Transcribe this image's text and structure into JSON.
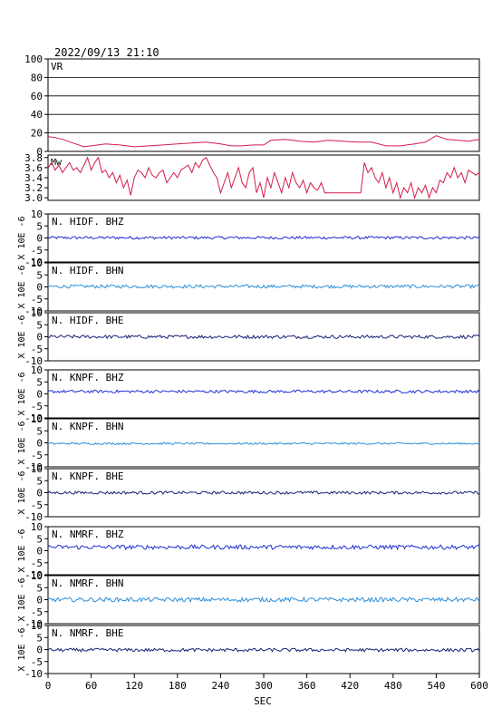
{
  "page": {
    "title": "2022/09/13 21:10",
    "xlabel": "SEC"
  },
  "chart_data": {
    "type": "line",
    "x_ticks": [
      0,
      60,
      120,
      180,
      240,
      300,
      360,
      420,
      480,
      540,
      600
    ],
    "xlim": [
      0,
      600
    ],
    "colors": {
      "frame": "#000000",
      "vr": "#d21e4a",
      "mw": "#d21e4a",
      "bhz": "#1f2fd1",
      "bhn": "#2b8fd9",
      "bhe": "#1a1f78",
      "grid": "#000000"
    },
    "vr": {
      "label": "VR",
      "yticks": [
        "100",
        "80",
        "60",
        "40",
        "20",
        "0"
      ],
      "ylim": [
        0,
        100
      ],
      "grid": true,
      "x": [
        0,
        10,
        20,
        35,
        50,
        60,
        80,
        100,
        120,
        140,
        160,
        180,
        200,
        220,
        240,
        255,
        270,
        285,
        300,
        310,
        330,
        350,
        370,
        390,
        410,
        430,
        450,
        470,
        490,
        510,
        525,
        540,
        555,
        570,
        585,
        600
      ],
      "y": [
        16,
        15,
        13,
        9,
        5,
        6,
        8,
        7,
        5,
        6,
        7,
        8,
        9,
        10,
        8,
        6,
        6,
        7,
        7,
        12,
        13,
        11,
        10,
        12,
        11,
        10,
        10,
        6,
        6,
        8,
        10,
        17,
        13,
        12,
        11,
        13
      ]
    },
    "mw": {
      "label": "Mw",
      "yticks": [
        "3.8",
        "3.6",
        "3.4",
        "3.2",
        "3.0"
      ],
      "ylim": [
        2.95,
        3.85
      ],
      "x": [
        0,
        5,
        10,
        15,
        20,
        25,
        30,
        35,
        40,
        45,
        50,
        55,
        60,
        65,
        70,
        75,
        80,
        85,
        90,
        95,
        100,
        105,
        110,
        115,
        120,
        125,
        130,
        135,
        140,
        145,
        150,
        155,
        160,
        165,
        170,
        175,
        180,
        185,
        190,
        195,
        200,
        205,
        210,
        215,
        220,
        225,
        230,
        235,
        240,
        245,
        250,
        255,
        260,
        265,
        270,
        275,
        280,
        285,
        290,
        295,
        300,
        305,
        310,
        315,
        320,
        325,
        330,
        335,
        340,
        345,
        350,
        355,
        360,
        365,
        370,
        375,
        380,
        385,
        390,
        395,
        400,
        405,
        410,
        415,
        420,
        425,
        430,
        435,
        440,
        445,
        450,
        455,
        460,
        465,
        470,
        475,
        480,
        485,
        490,
        495,
        500,
        505,
        510,
        515,
        520,
        525,
        530,
        535,
        540,
        545,
        550,
        555,
        560,
        565,
        570,
        575,
        580,
        585,
        590,
        595,
        600
      ],
      "y": [
        3.6,
        3.7,
        3.55,
        3.65,
        3.5,
        3.6,
        3.7,
        3.55,
        3.6,
        3.5,
        3.65,
        3.8,
        3.55,
        3.7,
        3.8,
        3.5,
        3.55,
        3.4,
        3.5,
        3.3,
        3.45,
        3.2,
        3.35,
        3.05,
        3.4,
        3.55,
        3.5,
        3.4,
        3.6,
        3.45,
        3.4,
        3.5,
        3.55,
        3.3,
        3.4,
        3.5,
        3.4,
        3.55,
        3.6,
        3.65,
        3.5,
        3.7,
        3.6,
        3.75,
        3.8,
        3.65,
        3.5,
        3.4,
        3.1,
        3.3,
        3.5,
        3.2,
        3.4,
        3.6,
        3.3,
        3.2,
        3.5,
        3.6,
        3.1,
        3.3,
        3.0,
        3.4,
        3.2,
        3.5,
        3.3,
        3.1,
        3.4,
        3.2,
        3.5,
        3.3,
        3.2,
        3.35,
        3.1,
        3.3,
        3.2,
        3.15,
        3.3,
        3.1,
        3.1,
        3.1,
        3.1,
        3.1,
        3.1,
        3.1,
        3.1,
        3.1,
        3.1,
        3.1,
        3.7,
        3.5,
        3.6,
        3.4,
        3.3,
        3.5,
        3.2,
        3.4,
        3.1,
        3.3,
        3.0,
        3.2,
        3.1,
        3.3,
        3.0,
        3.2,
        3.1,
        3.25,
        3.0,
        3.2,
        3.1,
        3.35,
        3.3,
        3.5,
        3.4,
        3.6,
        3.4,
        3.5,
        3.3,
        3.55,
        3.5,
        3.45,
        3.5
      ]
    },
    "channels": [
      {
        "name": "N. HIDF. BHZ",
        "colorKey": "bhz",
        "ylabel": "X 10E -6",
        "yticks": [
          "10",
          "5",
          "0",
          "-5",
          "-10"
        ],
        "ylim": [
          -10,
          10
        ],
        "baseline": 0.1,
        "amplitude": 0.6
      },
      {
        "name": "N. HIDF. BHN",
        "colorKey": "bhn",
        "ylabel": "X 10E -6",
        "yticks": [
          "10",
          "5",
          "0",
          "-5",
          "-10"
        ],
        "ylim": [
          -10,
          10
        ],
        "baseline": 0.2,
        "amplitude": 0.7
      },
      {
        "name": "N. HIDF. BHE",
        "colorKey": "bhe",
        "ylabel": "X 10E -6",
        "yticks": [
          "10",
          "5",
          "0",
          "-5",
          "-10"
        ],
        "ylim": [
          -10,
          10
        ],
        "baseline": 0.0,
        "amplitude": 0.7
      },
      {
        "name": "N. KNPF. BHZ",
        "colorKey": "bhz",
        "ylabel": "X 10E -6",
        "yticks": [
          "10",
          "5",
          "0",
          "-5",
          "-10"
        ],
        "ylim": [
          -10,
          10
        ],
        "baseline": 1.0,
        "amplitude": 0.6
      },
      {
        "name": "N. KNPF. BHN",
        "colorKey": "bhn",
        "ylabel": "X 10E -6",
        "yticks": [
          "10",
          "5",
          "0",
          "-5",
          "-10"
        ],
        "ylim": [
          -10,
          10
        ],
        "baseline": -0.3,
        "amplitude": 0.4
      },
      {
        "name": "N. KNPF. BHE",
        "colorKey": "bhe",
        "ylabel": "X 10E -6",
        "yticks": [
          "10",
          "5",
          "0",
          "-5",
          "-10"
        ],
        "ylim": [
          -10,
          10
        ],
        "baseline": 0.0,
        "amplitude": 0.6
      },
      {
        "name": "N. NMRF. BHZ",
        "colorKey": "bhz",
        "ylabel": "X 10E -6",
        "yticks": [
          "10",
          "5",
          "0",
          "-5",
          "-10"
        ],
        "ylim": [
          -10,
          10
        ],
        "baseline": 1.5,
        "amplitude": 0.9
      },
      {
        "name": "N. NMRF. BHN",
        "colorKey": "bhn",
        "ylabel": "X 10E -6",
        "yticks": [
          "10",
          "5",
          "0",
          "-5",
          "-10"
        ],
        "ylim": [
          -10,
          10
        ],
        "baseline": 0.0,
        "amplitude": 0.9
      },
      {
        "name": "N. NMRF. BHE",
        "colorKey": "bhe",
        "ylabel": "X 10E -6",
        "yticks": [
          "10",
          "5",
          "0",
          "-5",
          "-10"
        ],
        "ylim": [
          -10,
          10
        ],
        "baseline": -0.2,
        "amplitude": 0.7
      }
    ]
  }
}
